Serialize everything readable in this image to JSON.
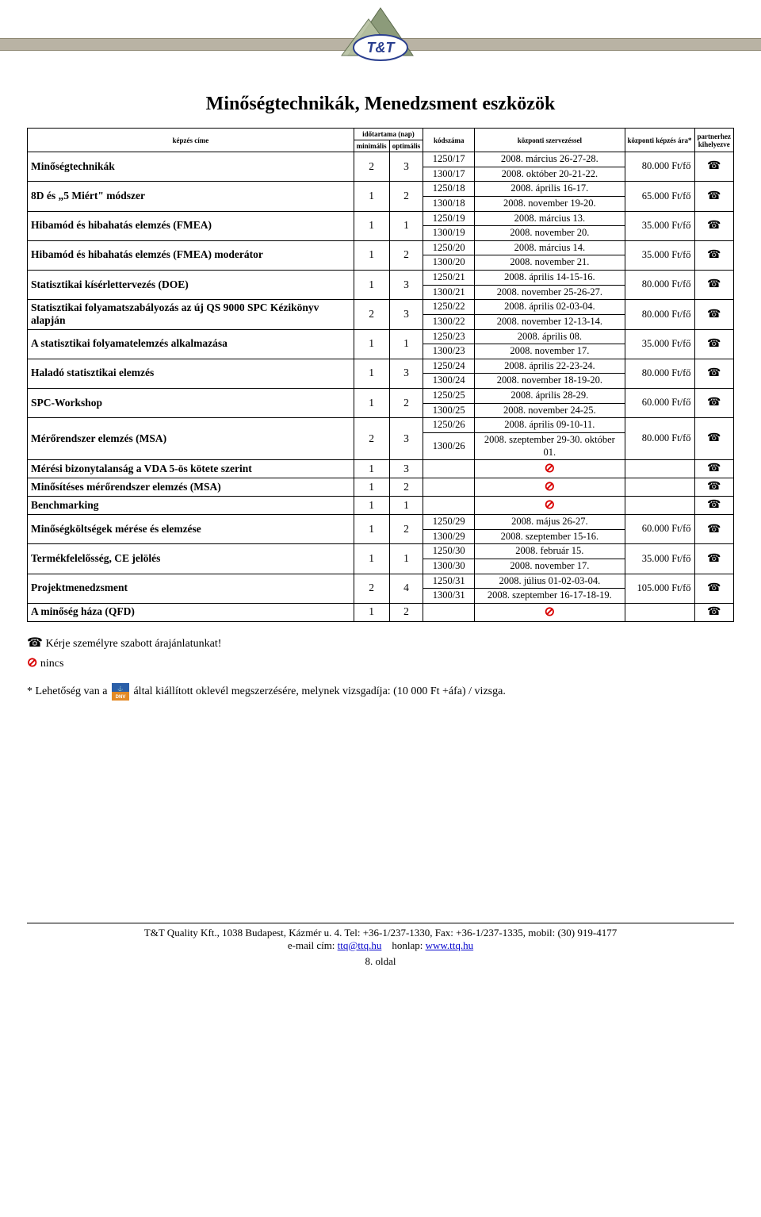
{
  "page": {
    "title": "Minőségtechnikák, Menedzsment eszközök",
    "footer_line1": "T&T Quality Kft., 1038 Budapest, Kázmér u. 4.  Tel: +36-1/237-1330, Fax: +36-1/237-1335, mobil: (30) 919-4177",
    "footer_email_label": "e-mail cím:",
    "footer_email": "ttq@ttq.hu",
    "footer_site_label": "honlap:",
    "footer_site": "www.ttq.hu",
    "page_num": "8. oldal"
  },
  "headers": {
    "course": "képzés címe",
    "duration": "időtartama (nap)",
    "min": "minimális",
    "opt": "optimális",
    "code": "kódszáma",
    "central": "központi szervezéssel",
    "price": "központi képzés ára*",
    "partner": "partnerhez kihelyezve"
  },
  "legend": {
    "request_quote": "Kérje személyre szabott árajánlatunkat!",
    "none": "nincs"
  },
  "footnote": {
    "prefix": "* Lehetőség van a",
    "suffix": "által kiállított oklevél megszerzésére, melynek vizsgadíja: (10 000 Ft +áfa) / vizsga."
  },
  "courses": [
    {
      "name": "Minőségtechnikák",
      "min": "2",
      "opt": "3",
      "rows": [
        {
          "code": "1250/17",
          "date": "2008. március 26-27-28."
        },
        {
          "code": "1300/17",
          "date": "2008. október 20-21-22."
        }
      ],
      "price": "80.000 Ft/fő",
      "partner": "phone"
    },
    {
      "name": "8D és „5 Miért\" módszer",
      "min": "1",
      "opt": "2",
      "rows": [
        {
          "code": "1250/18",
          "date": "2008. április 16-17."
        },
        {
          "code": "1300/18",
          "date": "2008. november 19-20."
        }
      ],
      "price": "65.000 Ft/fő",
      "partner": "phone"
    },
    {
      "name": "Hibamód és hibahatás elemzés (FMEA)",
      "min": "1",
      "opt": "1",
      "rows": [
        {
          "code": "1250/19",
          "date": "2008. március 13."
        },
        {
          "code": "1300/19",
          "date": "2008. november 20."
        }
      ],
      "price": "35.000 Ft/fő",
      "partner": "phone"
    },
    {
      "name": "Hibamód és hibahatás elemzés (FMEA) moderátor",
      "min": "1",
      "opt": "2",
      "rows": [
        {
          "code": "1250/20",
          "date": "2008. március 14."
        },
        {
          "code": "1300/20",
          "date": "2008. november 21."
        }
      ],
      "price": "35.000 Ft/fő",
      "partner": "phone"
    },
    {
      "name": "Statisztikai kísérlettervezés (DOE)",
      "min": "1",
      "opt": "3",
      "rows": [
        {
          "code": "1250/21",
          "date": "2008. április 14-15-16."
        },
        {
          "code": "1300/21",
          "date": "2008. november 25-26-27."
        }
      ],
      "price": "80.000 Ft/fő",
      "partner": "phone"
    },
    {
      "name": "Statisztikai folyamatszabályozás az új QS 9000 SPC Kézikönyv alapján",
      "min": "2",
      "opt": "3",
      "rows": [
        {
          "code": "1250/22",
          "date": "2008. április 02-03-04."
        },
        {
          "code": "1300/22",
          "date": "2008. november 12-13-14."
        }
      ],
      "price": "80.000 Ft/fő",
      "partner": "phone"
    },
    {
      "name": "A statisztikai folyamatelemzés alkalmazása",
      "min": "1",
      "opt": "1",
      "rows": [
        {
          "code": "1250/23",
          "date": "2008. április 08."
        },
        {
          "code": "1300/23",
          "date": "2008. november 17."
        }
      ],
      "price": "35.000 Ft/fő",
      "partner": "phone"
    },
    {
      "name": "Haladó statisztikai elemzés",
      "min": "1",
      "opt": "3",
      "rows": [
        {
          "code": "1250/24",
          "date": "2008. április 22-23-24."
        },
        {
          "code": "1300/24",
          "date": "2008. november 18-19-20."
        }
      ],
      "price": "80.000 Ft/fő",
      "partner": "phone"
    },
    {
      "name": "SPC-Workshop",
      "min": "1",
      "opt": "2",
      "rows": [
        {
          "code": "1250/25",
          "date": "2008. április 28-29."
        },
        {
          "code": "1300/25",
          "date": "2008. november 24-25."
        }
      ],
      "price": "60.000 Ft/fő",
      "partner": "phone"
    },
    {
      "name": "Mérőrendszer elemzés (MSA)",
      "min": "2",
      "opt": "3",
      "rows": [
        {
          "code": "1250/26",
          "date": "2008. április 09-10-11."
        },
        {
          "code": "1300/26",
          "date": "2008. szeptember 29-30. október 01."
        }
      ],
      "price": "80.000 Ft/fő",
      "partner": "phone"
    },
    {
      "name": "Mérési bizonytalanság a VDA 5-ös kötete szerint",
      "min": "1",
      "opt": "3",
      "rows": [],
      "forbid": true,
      "partner": "phone",
      "onerow": true
    },
    {
      "name": "Minősítéses mérőrendszer elemzés (MSA)",
      "min": "1",
      "opt": "2",
      "rows": [],
      "forbid": true,
      "partner": "phone",
      "onerow": true
    },
    {
      "name": "Benchmarking",
      "min": "1",
      "opt": "1",
      "rows": [],
      "forbid": true,
      "partner": "phone",
      "onerow": true
    },
    {
      "name": "Minőségköltségek mérése és elemzése",
      "min": "1",
      "opt": "2",
      "rows": [
        {
          "code": "1250/29",
          "date": "2008. május 26-27."
        },
        {
          "code": "1300/29",
          "date": "2008. szeptember 15-16."
        }
      ],
      "price": "60.000 Ft/fő",
      "partner": "phone"
    },
    {
      "name": "Termékfelelősség, CE jelölés",
      "min": "1",
      "opt": "1",
      "rows": [
        {
          "code": "1250/30",
          "date": "2008. február 15."
        },
        {
          "code": "1300/30",
          "date": "2008. november 17."
        }
      ],
      "price": "35.000 Ft/fő",
      "partner": "phone"
    },
    {
      "name": "Projektmenedzsment",
      "min": "2",
      "opt": "4",
      "rows": [
        {
          "code": "1250/31",
          "date": "2008. július 01-02-03-04."
        },
        {
          "code": "1300/31",
          "date": "2008. szeptember 16-17-18-19."
        }
      ],
      "price": "105.000 Ft/fő",
      "partner": "phone"
    },
    {
      "name": "A minőség háza (QFD)",
      "min": "1",
      "opt": "2",
      "rows": [],
      "forbid": true,
      "partner": "phone",
      "onerow": true
    }
  ],
  "style": {
    "stripe_color": "#b9b3a4",
    "forbid_color": "#d80000",
    "dnv_top": "#2b5fa8",
    "dnv_bottom": "#e38a26"
  }
}
